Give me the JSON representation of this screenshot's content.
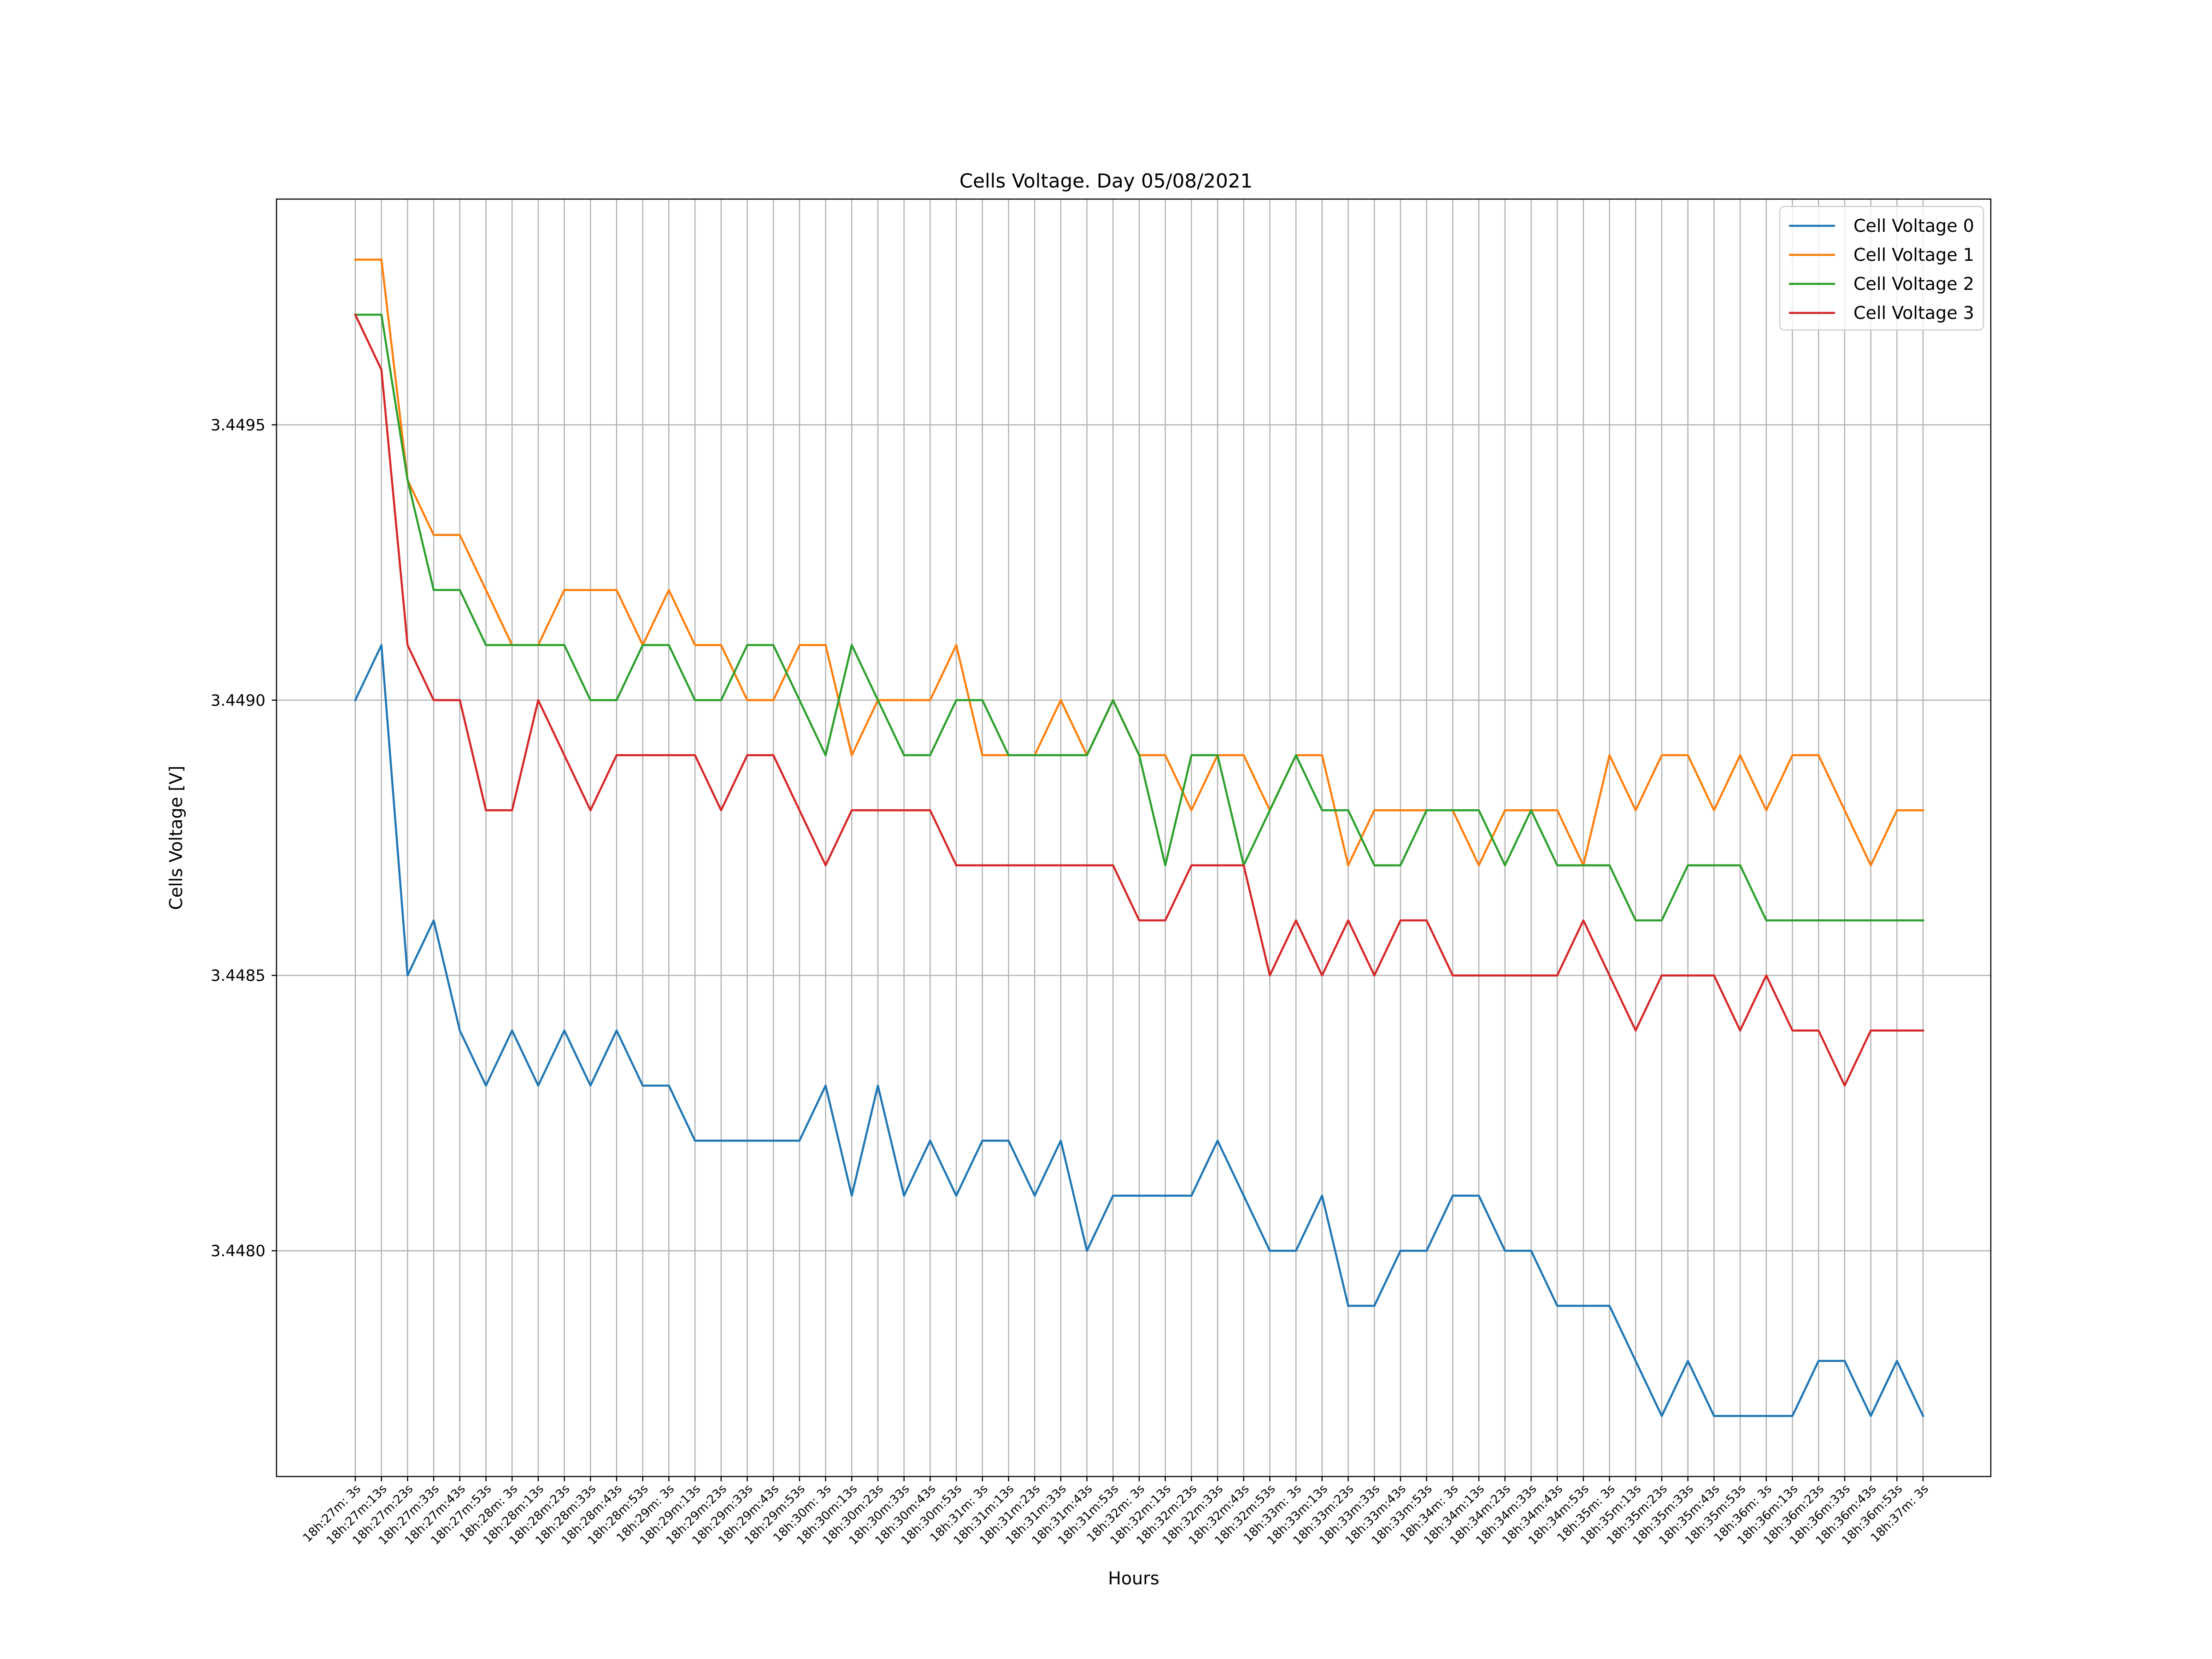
{
  "chart_data": {
    "type": "line",
    "title": "Cells Voltage. Day 05/08/2021",
    "xlabel": "Hours",
    "ylabel": "Cells Voltage [V]",
    "ylim": [
      3.44759,
      3.44991
    ],
    "yticks": [
      3.448,
      3.4485,
      3.449,
      3.4495
    ],
    "ytick_labels": [
      "3.4480",
      "3.4485",
      "3.4490",
      "3.4495"
    ],
    "grid": true,
    "legend_position": "top-right",
    "categories": [
      "18h:27m: 3s",
      "18h:27m:13s",
      "18h:27m:23s",
      "18h:27m:33s",
      "18h:27m:43s",
      "18h:27m:53s",
      "18h:28m: 3s",
      "18h:28m:13s",
      "18h:28m:23s",
      "18h:28m:33s",
      "18h:28m:43s",
      "18h:28m:53s",
      "18h:29m: 3s",
      "18h:29m:13s",
      "18h:29m:23s",
      "18h:29m:33s",
      "18h:29m:43s",
      "18h:29m:53s",
      "18h:30m: 3s",
      "18h:30m:13s",
      "18h:30m:23s",
      "18h:30m:33s",
      "18h:30m:43s",
      "18h:30m:53s",
      "18h:31m: 3s",
      "18h:31m:13s",
      "18h:31m:23s",
      "18h:31m:33s",
      "18h:31m:43s",
      "18h:31m:53s",
      "18h:32m: 3s",
      "18h:32m:13s",
      "18h:32m:23s",
      "18h:32m:33s",
      "18h:32m:43s",
      "18h:32m:53s",
      "18h:33m: 3s",
      "18h:33m:13s",
      "18h:33m:23s",
      "18h:33m:33s",
      "18h:33m:43s",
      "18h:33m:53s",
      "18h:34m: 3s",
      "18h:34m:13s",
      "18h:34m:23s",
      "18h:34m:33s",
      "18h:34m:43s",
      "18h:34m:53s",
      "18h:35m: 3s",
      "18h:35m:13s",
      "18h:35m:23s",
      "18h:35m:33s",
      "18h:35m:43s",
      "18h:35m:53s",
      "18h:36m: 3s",
      "18h:36m:13s",
      "18h:36m:23s",
      "18h:36m:33s",
      "18h:36m:43s",
      "18h:36m:53s",
      "18h:37m: 3s"
    ],
    "series": [
      {
        "name": "Cell Voltage 0",
        "color": "#1f77b4",
        "values": [
          3.449,
          3.4491,
          3.4485,
          3.4486,
          3.4484,
          3.4483,
          3.4484,
          3.4483,
          3.4484,
          3.4483,
          3.4484,
          3.4483,
          3.4483,
          3.4482,
          3.4482,
          3.4482,
          3.4482,
          3.4482,
          3.4483,
          3.4481,
          3.4483,
          3.4481,
          3.4482,
          3.4481,
          3.4482,
          3.4482,
          3.4481,
          3.4482,
          3.448,
          3.4481,
          3.4481,
          3.4481,
          3.4481,
          3.4482,
          3.4481,
          3.448,
          3.448,
          3.4481,
          3.4479,
          3.4479,
          3.448,
          3.448,
          3.4481,
          3.4481,
          3.448,
          3.448,
          3.4479,
          3.4479,
          3.4479,
          3.4478,
          3.4477,
          3.4478,
          3.4477,
          3.4477,
          3.4477,
          3.4477,
          3.4478,
          3.4478,
          3.4477,
          3.4478,
          3.4477
        ]
      },
      {
        "name": "Cell Voltage 1",
        "color": "#ff7f0e",
        "values": [
          3.4498,
          3.4498,
          3.4494,
          3.4493,
          3.4493,
          3.4492,
          3.4491,
          3.4491,
          3.4492,
          3.4492,
          3.4492,
          3.4491,
          3.4492,
          3.4491,
          3.4491,
          3.449,
          3.449,
          3.4491,
          3.4491,
          3.4489,
          3.449,
          3.449,
          3.449,
          3.4491,
          3.4489,
          3.4489,
          3.4489,
          3.449,
          3.4489,
          3.449,
          3.4489,
          3.4489,
          3.4488,
          3.4489,
          3.4489,
          3.4488,
          3.4489,
          3.4489,
          3.4487,
          3.4488,
          3.4488,
          3.4488,
          3.4488,
          3.4487,
          3.4488,
          3.4488,
          3.4488,
          3.4487,
          3.4489,
          3.4488,
          3.4489,
          3.4489,
          3.4488,
          3.4489,
          3.4488,
          3.4489,
          3.4489,
          3.4488,
          3.4487,
          3.4488,
          3.4488
        ]
      },
      {
        "name": "Cell Voltage 2",
        "color": "#2ca02c",
        "values": [
          3.4497,
          3.4497,
          3.4494,
          3.4492,
          3.4492,
          3.4491,
          3.4491,
          3.4491,
          3.4491,
          3.449,
          3.449,
          3.4491,
          3.4491,
          3.449,
          3.449,
          3.4491,
          3.4491,
          3.449,
          3.4489,
          3.4491,
          3.449,
          3.4489,
          3.4489,
          3.449,
          3.449,
          3.4489,
          3.4489,
          3.4489,
          3.4489,
          3.449,
          3.4489,
          3.4487,
          3.4489,
          3.4489,
          3.4487,
          3.4488,
          3.4489,
          3.4488,
          3.4488,
          3.4487,
          3.4487,
          3.4488,
          3.4488,
          3.4488,
          3.4487,
          3.4488,
          3.4487,
          3.4487,
          3.4487,
          3.4486,
          3.4486,
          3.4487,
          3.4487,
          3.4487,
          3.4486,
          3.4486,
          3.4486,
          3.4486,
          3.4486,
          3.4486,
          3.4486
        ]
      },
      {
        "name": "Cell Voltage 3",
        "color": "#d62728",
        "values": [
          3.4497,
          3.4496,
          3.4491,
          3.449,
          3.449,
          3.4488,
          3.4488,
          3.449,
          3.4489,
          3.4488,
          3.4489,
          3.4489,
          3.4489,
          3.4489,
          3.4488,
          3.4489,
          3.4489,
          3.4488,
          3.4487,
          3.4488,
          3.4488,
          3.4488,
          3.4488,
          3.4487,
          3.4487,
          3.4487,
          3.4487,
          3.4487,
          3.4487,
          3.4487,
          3.4486,
          3.4486,
          3.4487,
          3.4487,
          3.4487,
          3.4485,
          3.4486,
          3.4485,
          3.4486,
          3.4485,
          3.4486,
          3.4486,
          3.4485,
          3.4485,
          3.4485,
          3.4485,
          3.4485,
          3.4486,
          3.4485,
          3.4484,
          3.4485,
          3.4485,
          3.4485,
          3.4484,
          3.4485,
          3.4484,
          3.4484,
          3.4483,
          3.4484,
          3.4484,
          3.4484
        ]
      }
    ]
  }
}
